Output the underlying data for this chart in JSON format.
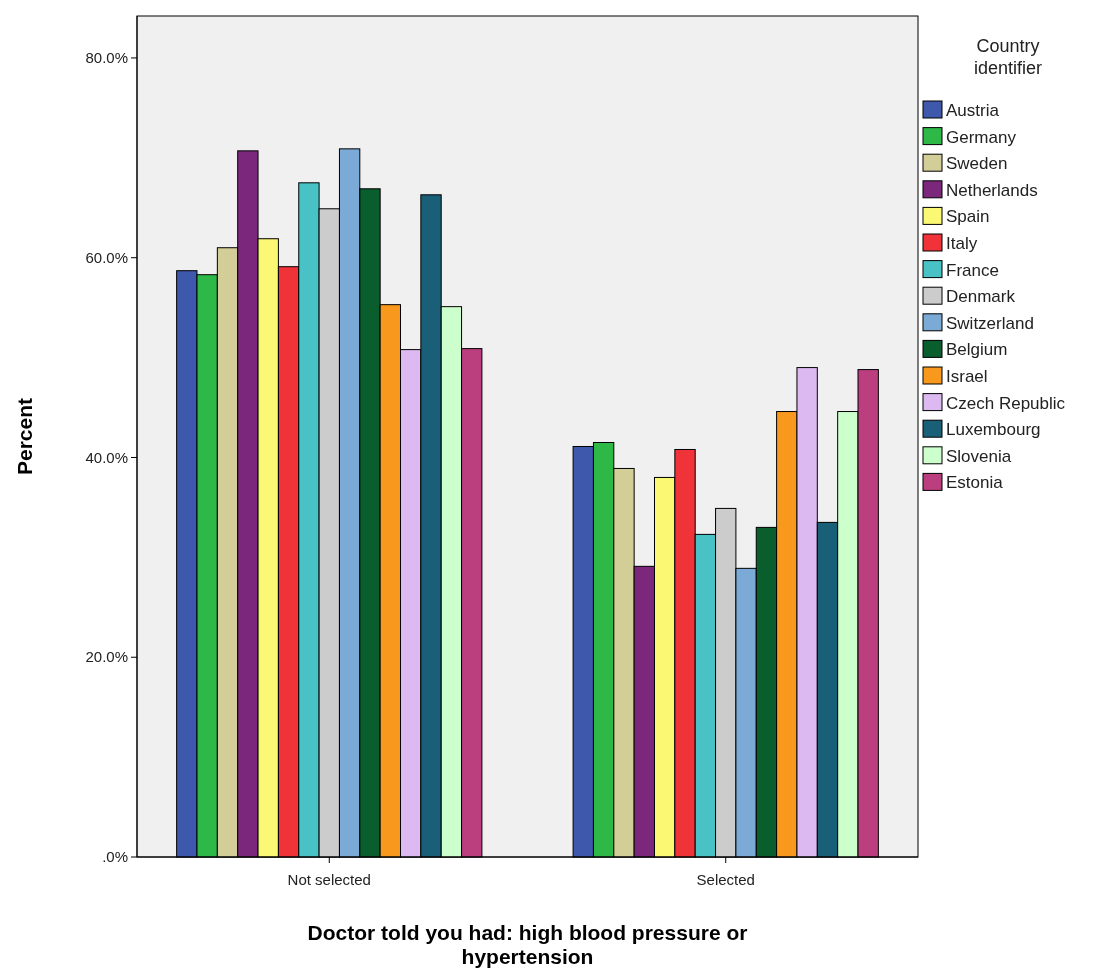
{
  "chart_data": {
    "type": "bar",
    "xlabel": "Doctor told you had: high blood pressure or hypertension",
    "ylabel": "Percent",
    "legend_title": "Country identifier",
    "legend": "right",
    "grid": false,
    "categories": [
      "Not selected",
      "Selected"
    ],
    "ylim": [
      0,
      84.2
    ],
    "yticks": [
      {
        "value": 0,
        "label": ".0%"
      },
      {
        "value": 20,
        "label": "20.0%"
      },
      {
        "value": 40,
        "label": "40.0%"
      },
      {
        "value": 60,
        "label": "60.0%"
      },
      {
        "value": 80,
        "label": "80.0%"
      }
    ],
    "series": [
      {
        "name": "Austria",
        "color": "#3e58ac",
        "values": [
          58.7,
          41.1
        ]
      },
      {
        "name": "Germany",
        "color": "#2eb848",
        "values": [
          58.3,
          41.5
        ]
      },
      {
        "name": "Sweden",
        "color": "#d3ce97",
        "values": [
          61.0,
          38.9
        ]
      },
      {
        "name": "Netherlands",
        "color": "#7b277c",
        "values": [
          70.7,
          29.1
        ]
      },
      {
        "name": "Spain",
        "color": "#fbf873",
        "values": [
          61.9,
          38.0
        ]
      },
      {
        "name": "Italy",
        "color": "#ef3338",
        "values": [
          59.1,
          40.8
        ]
      },
      {
        "name": "France",
        "color": "#48c2c5",
        "values": [
          67.5,
          32.3
        ]
      },
      {
        "name": "Denmark",
        "color": "#cccccc",
        "values": [
          64.9,
          34.9
        ]
      },
      {
        "name": "Switzerland",
        "color": "#7aaad5",
        "values": [
          70.9,
          28.9
        ]
      },
      {
        "name": "Belgium",
        "color": "#0a5d2d",
        "values": [
          66.9,
          33.0
        ]
      },
      {
        "name": "Israel",
        "color": "#f8981d",
        "values": [
          55.3,
          44.6
        ]
      },
      {
        "name": "Czech Republic",
        "color": "#ddb9f1",
        "values": [
          50.8,
          49.0
        ]
      },
      {
        "name": "Luxembourg",
        "color": "#1a5f78",
        "values": [
          66.3,
          33.5
        ]
      },
      {
        "name": "Slovenia",
        "color": "#ccffcc",
        "values": [
          55.1,
          44.6
        ]
      },
      {
        "name": "Estonia",
        "color": "#bb3f7f",
        "values": [
          50.9,
          48.8
        ]
      }
    ]
  }
}
